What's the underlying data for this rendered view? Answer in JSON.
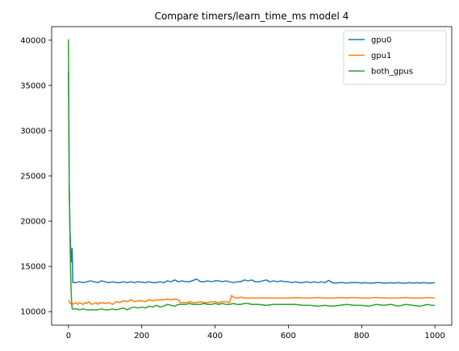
{
  "chart_data": {
    "type": "line",
    "title": "Compare timers/learn_time_ms model 4",
    "xlabel": "",
    "ylabel": "",
    "xlim": [
      -46,
      1046
    ],
    "ylim": [
      8500,
      41500
    ],
    "xticks": [
      0,
      200,
      400,
      600,
      800,
      1000
    ],
    "yticks": [
      10000,
      15000,
      20000,
      25000,
      30000,
      35000,
      40000
    ],
    "grid": false,
    "legend_position": "top-right",
    "series": [
      {
        "name": "gpu0",
        "color": "#1f77b4",
        "x": [
          0,
          2,
          4,
          6,
          8,
          10,
          12,
          14,
          16,
          20,
          30,
          40,
          50,
          60,
          70,
          80,
          90,
          100,
          110,
          120,
          130,
          140,
          150,
          160,
          170,
          180,
          190,
          200,
          210,
          220,
          230,
          240,
          250,
          260,
          270,
          280,
          290,
          300,
          310,
          320,
          330,
          340,
          350,
          360,
          370,
          380,
          390,
          400,
          410,
          420,
          430,
          440,
          450,
          460,
          470,
          480,
          490,
          500,
          510,
          520,
          530,
          540,
          550,
          560,
          570,
          580,
          590,
          600,
          610,
          620,
          630,
          640,
          650,
          660,
          670,
          680,
          690,
          700,
          710,
          720,
          730,
          740,
          750,
          760,
          770,
          780,
          790,
          800,
          810,
          820,
          830,
          840,
          850,
          860,
          870,
          880,
          890,
          900,
          910,
          920,
          930,
          940,
          950,
          960,
          970,
          980,
          990,
          1000
        ],
        "y": [
          36500,
          24000,
          19000,
          17000,
          15500,
          17000,
          13200,
          13200,
          13200,
          13200,
          13300,
          13200,
          13300,
          13400,
          13300,
          13200,
          13400,
          13300,
          13200,
          13300,
          13200,
          13200,
          13300,
          13200,
          13300,
          13200,
          13300,
          13250,
          13200,
          13300,
          13200,
          13200,
          13300,
          13200,
          13400,
          13300,
          13500,
          13300,
          13400,
          13300,
          13300,
          13450,
          13600,
          13300,
          13300,
          13400,
          13300,
          13400,
          13400,
          13300,
          13400,
          13300,
          13200,
          13300,
          13300,
          13500,
          13400,
          13500,
          13300,
          13300,
          13400,
          13500,
          13300,
          13400,
          13300,
          13400,
          13300,
          13300,
          13200,
          13300,
          13200,
          13200,
          13300,
          13200,
          13300,
          13200,
          13300,
          13200,
          13450,
          13200,
          13150,
          13200,
          13200,
          13150,
          13200,
          13200,
          13200,
          13150,
          13200,
          13150,
          13150,
          13200,
          13200,
          13150,
          13150,
          13200,
          13150,
          13200,
          13150,
          13150,
          13200,
          13150,
          13200,
          13150,
          13200,
          13150,
          13150,
          13200
        ]
      },
      {
        "name": "gpu1",
        "color": "#ff7f0e",
        "x": [
          0,
          5,
          10,
          15,
          20,
          25,
          30,
          35,
          40,
          45,
          50,
          55,
          60,
          65,
          70,
          75,
          80,
          85,
          90,
          95,
          100,
          110,
          120,
          130,
          140,
          150,
          160,
          170,
          180,
          190,
          200,
          210,
          220,
          230,
          240,
          250,
          260,
          270,
          280,
          290,
          300,
          305,
          310,
          320,
          330,
          340,
          350,
          360,
          370,
          380,
          390,
          400,
          410,
          420,
          430,
          440,
          445,
          450,
          460,
          470,
          480,
          490,
          500,
          520,
          540,
          560,
          580,
          600,
          620,
          640,
          660,
          680,
          700,
          720,
          740,
          760,
          780,
          800,
          820,
          840,
          860,
          880,
          900,
          920,
          940,
          960,
          980,
          1000
        ],
        "y": [
          11300,
          10900,
          10800,
          10900,
          11000,
          10800,
          11000,
          10900,
          10800,
          11000,
          10900,
          11100,
          10900,
          10800,
          10900,
          11000,
          10800,
          11000,
          10900,
          11000,
          10900,
          11000,
          10800,
          11100,
          11000,
          11200,
          11100,
          11300,
          11100,
          11200,
          11200,
          11100,
          11300,
          11200,
          11300,
          11300,
          11300,
          11400,
          11300,
          11400,
          11300,
          11000,
          11000,
          11000,
          11100,
          11000,
          11000,
          11100,
          11000,
          11000,
          11100,
          11100,
          11000,
          11100,
          11100,
          11000,
          11800,
          11600,
          11500,
          11600,
          11500,
          11500,
          11500,
          11500,
          11500,
          11500,
          11500,
          11500,
          11550,
          11500,
          11500,
          11550,
          11500,
          11500,
          11550,
          11500,
          11550,
          11500,
          11500,
          11550,
          11500,
          11500,
          11500,
          11550,
          11500,
          11500,
          11550,
          11500
        ]
      },
      {
        "name": "both_gpus",
        "color": "#2ca02c",
        "x": [
          0,
          2,
          4,
          6,
          8,
          10,
          15,
          20,
          30,
          40,
          50,
          60,
          70,
          80,
          90,
          100,
          110,
          120,
          130,
          140,
          150,
          160,
          170,
          180,
          190,
          200,
          210,
          220,
          230,
          240,
          250,
          260,
          270,
          280,
          290,
          300,
          310,
          320,
          330,
          340,
          350,
          360,
          370,
          380,
          390,
          400,
          410,
          420,
          430,
          440,
          450,
          460,
          470,
          480,
          490,
          500,
          520,
          540,
          560,
          580,
          600,
          620,
          640,
          660,
          680,
          700,
          720,
          740,
          760,
          780,
          800,
          820,
          840,
          860,
          880,
          900,
          920,
          940,
          960,
          980,
          990,
          1000
        ],
        "y": [
          40100,
          24000,
          18500,
          14000,
          11500,
          10300,
          10300,
          10300,
          10200,
          10300,
          10200,
          10200,
          10200,
          10200,
          10300,
          10200,
          10200,
          10300,
          10200,
          10300,
          10400,
          10200,
          10400,
          10500,
          10400,
          10500,
          10400,
          10600,
          10500,
          10700,
          10500,
          10600,
          10800,
          10700,
          10600,
          10800,
          10800,
          10800,
          10900,
          10800,
          10800,
          10800,
          10900,
          10800,
          10800,
          10900,
          10800,
          10900,
          10800,
          10800,
          10900,
          10800,
          10800,
          10900,
          10900,
          10800,
          10800,
          10700,
          10800,
          10800,
          10800,
          10800,
          10700,
          10700,
          10600,
          10700,
          10600,
          10700,
          10800,
          10700,
          10700,
          10600,
          10800,
          10700,
          10800,
          10600,
          10800,
          10700,
          10600,
          10800,
          10700,
          10700
        ]
      }
    ]
  }
}
